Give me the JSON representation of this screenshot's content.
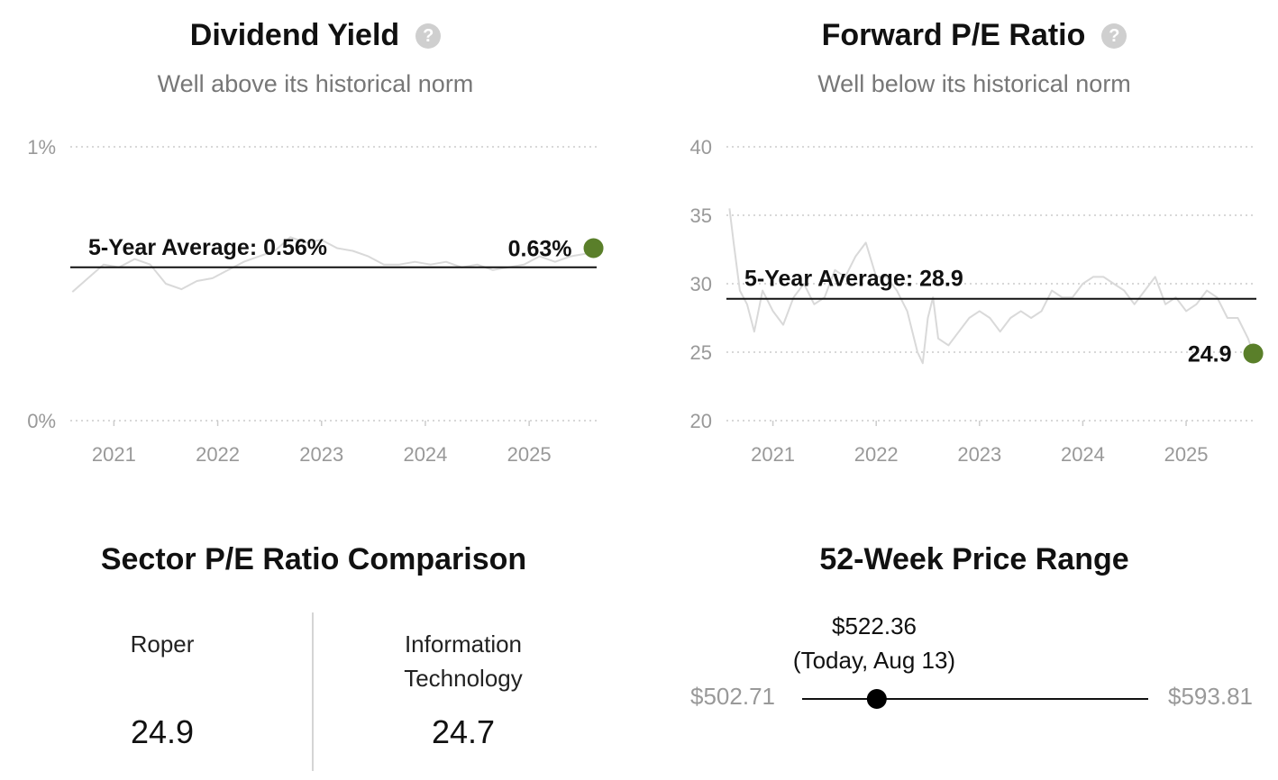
{
  "dividend_yield": {
    "title": "Dividend Yield",
    "subtitle": "Well above its historical norm",
    "help_icon": "question-circle-icon",
    "avg_label": "5-Year Average: 0.56%",
    "current_label": "0.63%",
    "accent_color": "#5a7f2a",
    "line_color": "#d9d9d9"
  },
  "forward_pe": {
    "title": "Forward P/E Ratio",
    "subtitle": "Well below its historical norm",
    "help_icon": "question-circle-icon",
    "avg_label": "5-Year Average: 28.9",
    "current_label": "24.9",
    "accent_color": "#5a7f2a",
    "line_color": "#d9d9d9"
  },
  "sector": {
    "title": "Sector P/E Ratio Comparison",
    "company_label": "Roper",
    "company_value": "24.9",
    "sector_label": "Information Technology",
    "sector_value": "24.7"
  },
  "price_range": {
    "title": "52-Week Price Range",
    "low": "$502.71",
    "high": "$593.81",
    "current": "$522.36",
    "current_note": "(Today, Aug 13)",
    "low_value": 502.71,
    "high_value": 593.81,
    "current_value": 522.36
  },
  "chart_data": [
    {
      "type": "line",
      "title": "Dividend Yield",
      "subtitle": "Well above its historical norm",
      "ytick_labels": [
        "0%",
        "1%"
      ],
      "yticks": [
        0,
        1
      ],
      "ylim": [
        0,
        1
      ],
      "x_tick_labels": [
        "2021",
        "2022",
        "2023",
        "2024",
        "2025"
      ],
      "x_ticks": [
        2021,
        2022,
        2023,
        2024,
        2025
      ],
      "xlim": [
        2020.58,
        2025.65
      ],
      "average": 0.56,
      "average_label": "5-Year Average: 0.56%",
      "current": 0.63,
      "current_label": "0.63%",
      "grid": true,
      "series": [
        {
          "x": [
            2020.6,
            2020.75,
            2020.9,
            2021.05,
            2021.2,
            2021.35,
            2021.5,
            2021.65,
            2021.8,
            2021.95,
            2022.1,
            2022.25,
            2022.4,
            2022.55,
            2022.7,
            2022.85,
            2023.0,
            2023.15,
            2023.3,
            2023.45,
            2023.6,
            2023.75,
            2023.9,
            2024.05,
            2024.2,
            2024.35,
            2024.5,
            2024.65,
            2024.8,
            2024.95,
            2025.1,
            2025.25,
            2025.4,
            2025.55,
            2025.62
          ],
          "y": [
            0.47,
            0.52,
            0.57,
            0.56,
            0.59,
            0.57,
            0.5,
            0.48,
            0.51,
            0.52,
            0.55,
            0.58,
            0.6,
            0.62,
            0.67,
            0.65,
            0.66,
            0.63,
            0.62,
            0.6,
            0.57,
            0.57,
            0.58,
            0.57,
            0.58,
            0.56,
            0.57,
            0.55,
            0.56,
            0.57,
            0.6,
            0.58,
            0.6,
            0.61,
            0.63
          ]
        }
      ]
    },
    {
      "type": "line",
      "title": "Forward P/E Ratio",
      "subtitle": "Well below its historical norm",
      "yticks": [
        20,
        25,
        30,
        35,
        40
      ],
      "ylim": [
        20,
        40
      ],
      "x_tick_labels": [
        "2021",
        "2022",
        "2023",
        "2024",
        "2025"
      ],
      "x_ticks": [
        2021,
        2022,
        2023,
        2024,
        2025
      ],
      "xlim": [
        2020.55,
        2025.68
      ],
      "average": 28.9,
      "average_label": "5-Year Average: 28.9",
      "current": 24.9,
      "current_label": "24.9",
      "grid": true,
      "series": [
        {
          "x": [
            2020.58,
            2020.62,
            2020.68,
            2020.75,
            2020.82,
            2020.9,
            2021.0,
            2021.1,
            2021.2,
            2021.3,
            2021.4,
            2021.5,
            2021.6,
            2021.7,
            2021.8,
            2021.9,
            2022.0,
            2022.1,
            2022.2,
            2022.3,
            2022.4,
            2022.45,
            2022.5,
            2022.55,
            2022.6,
            2022.7,
            2022.8,
            2022.9,
            2023.0,
            2023.1,
            2023.2,
            2023.3,
            2023.4,
            2023.5,
            2023.6,
            2023.7,
            2023.8,
            2023.9,
            2024.0,
            2024.1,
            2024.2,
            2024.3,
            2024.4,
            2024.5,
            2024.6,
            2024.7,
            2024.8,
            2024.9,
            2025.0,
            2025.1,
            2025.2,
            2025.3,
            2025.4,
            2025.5,
            2025.6,
            2025.65
          ],
          "y": [
            35.5,
            33,
            29.5,
            28.5,
            26.5,
            29.5,
            28,
            27,
            29,
            30,
            28.5,
            29,
            31,
            30.5,
            32,
            33,
            30.5,
            30.5,
            29.5,
            28,
            25,
            24.2,
            27.5,
            29,
            26,
            25.5,
            26.5,
            27.5,
            28,
            27.5,
            26.5,
            27.5,
            28,
            27.5,
            28,
            29.5,
            29,
            29,
            30,
            30.5,
            30.5,
            30,
            29.5,
            28.5,
            29.5,
            30.5,
            28.5,
            29,
            28,
            28.5,
            29.5,
            29,
            27.5,
            27.5,
            26,
            24.9
          ]
        }
      ]
    }
  ]
}
